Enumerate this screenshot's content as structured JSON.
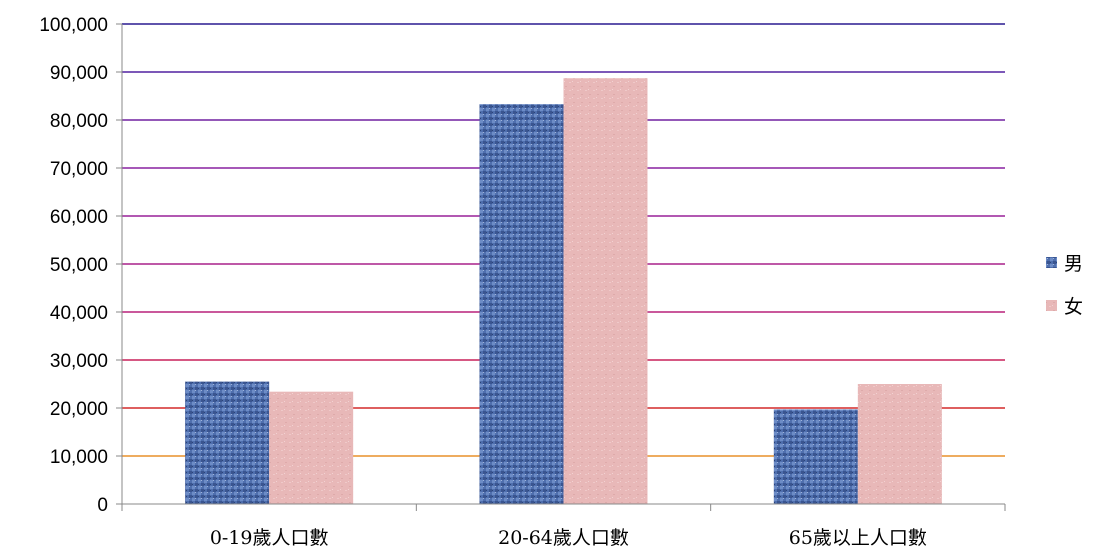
{
  "chart_data": {
    "type": "bar",
    "categories": [
      "0-19歲人口數",
      "20-64歲人口數",
      "65歲以上人口數"
    ],
    "series": [
      {
        "name": "男",
        "values": [
          25500,
          83300,
          19700
        ],
        "color": "#4f6fae"
      },
      {
        "name": "女",
        "values": [
          23400,
          88700,
          25000
        ],
        "color": "#e8b8b8"
      }
    ],
    "yticks": [
      "0",
      "10,000",
      "20,000",
      "30,000",
      "40,000",
      "50,000",
      "60,000",
      "70,000",
      "80,000",
      "90,000",
      "100,000"
    ],
    "ylim": [
      0,
      100000
    ],
    "grid": true,
    "gridline_colors": [
      "#e8902a",
      "#d42a2a",
      "#c8205a",
      "#b8207a",
      "#a8208a",
      "#982098",
      "#8820a0",
      "#7020a0",
      "#5020a0",
      "#2a1a90"
    ],
    "legend_position": "right"
  }
}
